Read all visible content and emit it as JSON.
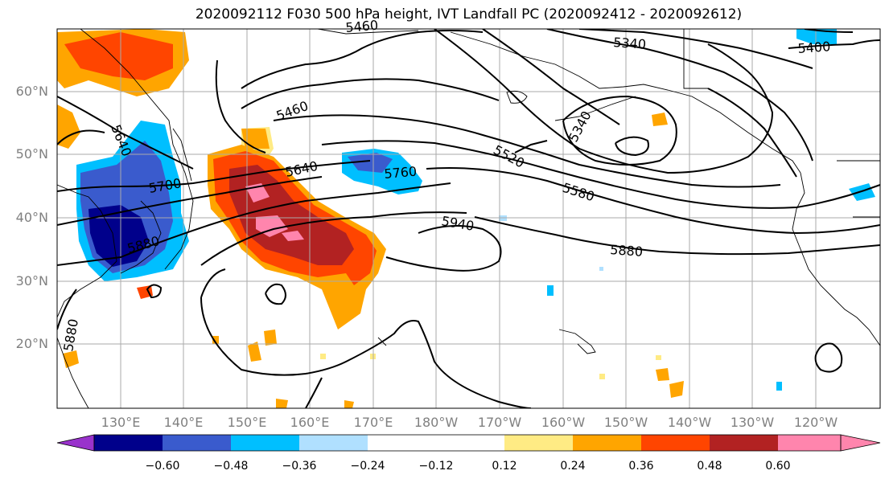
{
  "title": "2020092112 F030 500 hPa height, IVT Landfall PC (2020092412 - 2020092612)",
  "map": {
    "region": "North Pacific",
    "projection": "PlateCarree",
    "lon_range": [
      "120°E",
      "110°W"
    ],
    "lat_range": [
      "10°N",
      "70°N"
    ],
    "lat_labels": [
      "20°N",
      "30°N",
      "40°N",
      "50°N",
      "60°N"
    ],
    "lon_labels": [
      "130°E",
      "140°E",
      "150°E",
      "160°E",
      "170°E",
      "180°W",
      "170°W",
      "160°W",
      "150°W",
      "140°W",
      "130°W",
      "120°W"
    ],
    "gridlines": true,
    "coastlines": true
  },
  "contours": {
    "field": "500 hPa height",
    "labels": [
      "5340",
      "5400",
      "5460",
      "5520",
      "5580",
      "5640",
      "5700",
      "5760",
      "5880",
      "5940",
      "5880",
      "5640",
      "5340",
      "5880",
      "5460"
    ]
  },
  "colorbar": {
    "field": "IVT Landfall PC",
    "orientation": "horizontal",
    "extend": "both",
    "colors": [
      "#9932CC",
      "#00008B",
      "#3A5BCD",
      "#00BFFF",
      "#B0E0FF",
      "#FFFFFF",
      "#FFFFFF",
      "#FFEB84",
      "#FFA500",
      "#FF4500",
      "#B22222",
      "#FF85AD"
    ],
    "tick_labels": [
      "−0.60",
      "−0.48",
      "−0.36",
      "−0.24",
      "−0.12",
      "0.12",
      "0.24",
      "0.36",
      "0.48",
      "0.60"
    ]
  }
}
